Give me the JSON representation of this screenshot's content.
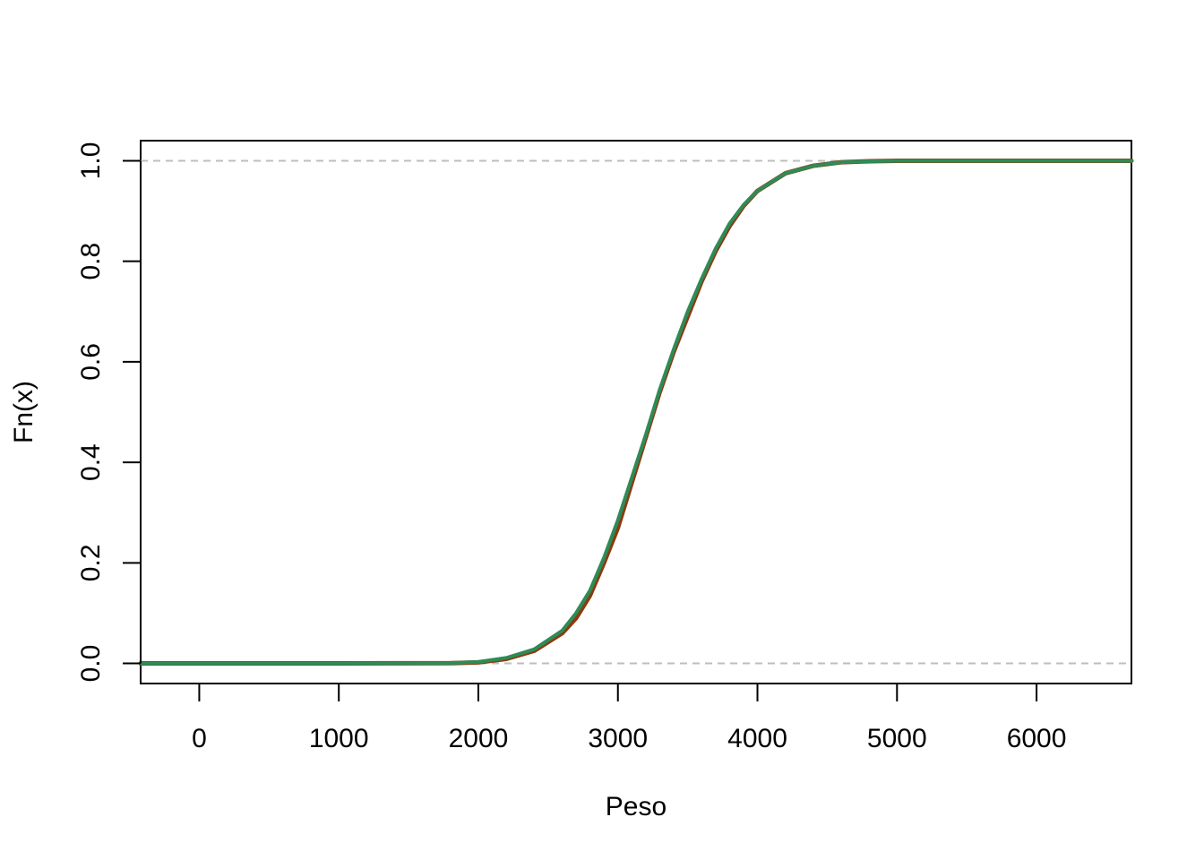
{
  "chart_data": {
    "type": "line",
    "title": "",
    "xlabel": "Peso",
    "ylabel": "Fn(x)",
    "xlim": [
      -420,
      6680
    ],
    "ylim": [
      -0.04,
      1.04
    ],
    "x_ticks": [
      0,
      1000,
      2000,
      3000,
      4000,
      5000,
      6000
    ],
    "x_tick_labels": [
      "0",
      "1000",
      "2000",
      "3000",
      "4000",
      "5000",
      "6000"
    ],
    "y_ticks": [
      0,
      0.2,
      0.4,
      0.6,
      0.8,
      1.0
    ],
    "y_tick_labels": [
      "0.0",
      "0.2",
      "0.4",
      "0.6",
      "0.8",
      "1.0"
    ],
    "reference_lines": [
      0,
      1
    ],
    "grid": false,
    "legend": "none",
    "series": [
      {
        "color": "#8B3A0F",
        "x": [
          -420,
          -200,
          0,
          1000,
          1800,
          2000,
          2200,
          2400,
          2600,
          2700,
          2800,
          2900,
          3000,
          3100,
          3200,
          3300,
          3400,
          3500,
          3600,
          3700,
          3800,
          3900,
          4000,
          4200,
          4400,
          4600,
          4800,
          5000,
          5500,
          6000,
          6500,
          6680
        ],
        "y": [
          0,
          0,
          0,
          0,
          0.0005,
          0.002,
          0.009,
          0.025,
          0.06,
          0.09,
          0.135,
          0.2,
          0.27,
          0.36,
          0.45,
          0.54,
          0.62,
          0.69,
          0.76,
          0.82,
          0.87,
          0.91,
          0.94,
          0.975,
          0.99,
          0.997,
          0.999,
          1,
          1,
          1,
          1,
          1
        ]
      },
      {
        "color": "#2E8B57",
        "x": [
          -420,
          -200,
          0,
          1000,
          1800,
          2000,
          2200,
          2400,
          2600,
          2700,
          2800,
          2900,
          3000,
          3100,
          3200,
          3300,
          3400,
          3500,
          3600,
          3700,
          3800,
          3900,
          4000,
          4200,
          4400,
          4600,
          4800,
          5000,
          5500,
          6000,
          6500,
          6680
        ],
        "y": [
          0,
          0,
          0,
          0,
          0.0008,
          0.003,
          0.011,
          0.028,
          0.065,
          0.1,
          0.145,
          0.21,
          0.285,
          0.37,
          0.455,
          0.545,
          0.625,
          0.7,
          0.765,
          0.825,
          0.875,
          0.912,
          0.94,
          0.975,
          0.99,
          0.997,
          0.999,
          1,
          1,
          1,
          1,
          1
        ]
      }
    ],
    "colors": {
      "reference_line": "#BEBEBE",
      "axis": "#000000"
    }
  }
}
